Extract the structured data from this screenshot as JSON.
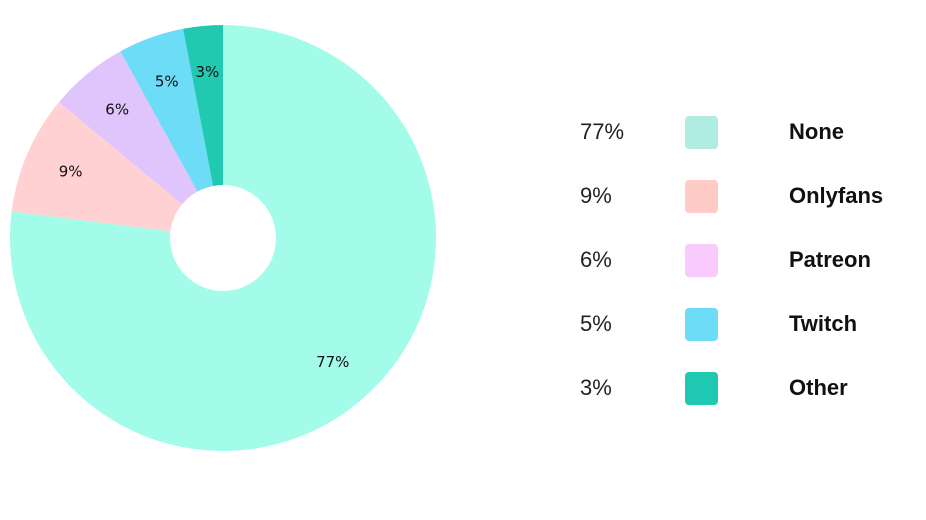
{
  "chart_data": {
    "type": "donut",
    "categories": [
      "None",
      "Onlyfans",
      "Patreon",
      "Twitch",
      "Other"
    ],
    "values": [
      77,
      9,
      6,
      5,
      3
    ],
    "value_labels": [
      "77%",
      "9%",
      "6%",
      "5%",
      "3%"
    ],
    "colors": [
      "#a3fce9",
      "#ffd1d3",
      "#e0c4fc",
      "#6cdcf7",
      "#22c9b1"
    ],
    "legend_colors": [
      "#b0ece2",
      "#ffcbc6",
      "#f9cbfc",
      "#6cdcf7",
      "#1fc8b0"
    ],
    "legend": "right"
  }
}
